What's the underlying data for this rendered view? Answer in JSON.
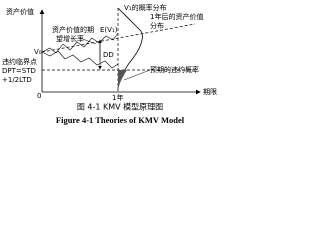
{
  "labels": {
    "y_axis": "资产价值",
    "x_axis": "期限",
    "dist": "V₁的概率分布",
    "dist_note_1": "1年后的资产价值",
    "dist_note_2": "分布",
    "expected": "E(V₁)",
    "growth_1": "资产价值的期",
    "growth_2": "望增长率",
    "v0": "V₀",
    "dd": "DD",
    "dpt_1": "违约临界点",
    "dpt_2": "DPT=STD",
    "dpt_3": "+1/2LTD",
    "edf": "预期的违约概率",
    "origin": "0",
    "one_year": "1年"
  },
  "caption": {
    "cn": "图 4-1 KMV 模型原理图",
    "en": "Figure 4-1 Theories of KMV Model"
  }
}
